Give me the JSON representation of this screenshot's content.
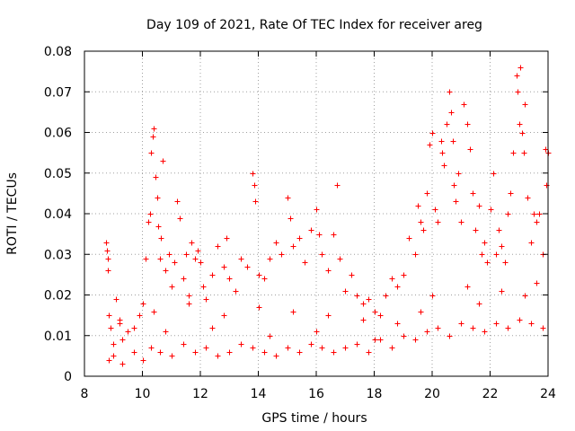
{
  "chart_data": {
    "type": "scatter",
    "title": "Day 109 of 2021, Rate Of TEC Index for receiver areg",
    "xlabel": "GPS time / hours",
    "ylabel": "ROTI / TECUs",
    "xlim": [
      8,
      24
    ],
    "ylim": [
      0,
      0.08
    ],
    "xticks": [
      8,
      10,
      12,
      14,
      16,
      18,
      20,
      22,
      24
    ],
    "yticks": [
      0,
      0.01,
      0.02,
      0.03,
      0.04,
      0.05,
      0.06,
      0.07,
      0.08
    ],
    "xtick_labels": [
      "8",
      "10",
      "12",
      "14",
      "16",
      "18",
      "20",
      "22",
      "24"
    ],
    "ytick_labels": [
      "0",
      "0.01",
      "0.02",
      "0.03",
      "0.04",
      "0.05",
      "0.06",
      "0.07",
      "0.08"
    ],
    "grid": true,
    "marker": "+",
    "color": "#ff0000",
    "series": [
      {
        "name": "ROTI",
        "x": [
          8.75,
          8.78,
          8.8,
          8.82,
          8.85,
          8.9,
          9.0,
          9.1,
          9.2,
          9.3,
          9.5,
          9.7,
          9.9,
          10.0,
          10.1,
          10.2,
          10.25,
          10.3,
          10.35,
          10.4,
          10.45,
          10.5,
          10.55,
          10.6,
          10.65,
          10.7,
          10.8,
          10.9,
          11.0,
          11.1,
          11.2,
          11.3,
          11.4,
          11.5,
          11.6,
          11.7,
          11.8,
          11.9,
          12.0,
          12.1,
          12.2,
          12.4,
          12.6,
          12.8,
          12.9,
          13.0,
          13.2,
          13.4,
          13.6,
          13.8,
          13.85,
          13.9,
          14.0,
          14.2,
          14.4,
          14.6,
          14.8,
          15.0,
          15.1,
          15.2,
          15.4,
          15.6,
          15.8,
          16.0,
          16.1,
          16.2,
          16.4,
          16.6,
          16.7,
          16.8,
          17.0,
          17.2,
          17.4,
          17.6,
          17.8,
          18.0,
          18.2,
          18.4,
          18.6,
          18.8,
          19.0,
          19.2,
          19.4,
          19.5,
          19.6,
          19.7,
          19.8,
          19.9,
          20.0,
          20.1,
          20.2,
          20.3,
          20.35,
          20.4,
          20.5,
          20.6,
          20.65,
          20.7,
          20.75,
          20.8,
          20.9,
          21.0,
          21.1,
          21.2,
          21.3,
          21.4,
          21.5,
          21.6,
          21.7,
          21.8,
          21.9,
          22.0,
          22.1,
          22.2,
          22.3,
          22.4,
          22.5,
          22.6,
          22.7,
          22.8,
          22.9,
          22.95,
          23.0,
          23.05,
          23.1,
          23.15,
          23.2,
          23.3,
          23.4,
          23.5,
          23.6,
          23.7,
          23.8,
          23.9,
          23.95,
          24.0,
          8.85,
          9.0,
          9.3,
          9.7,
          10.0,
          10.3,
          10.6,
          11.0,
          11.4,
          11.8,
          12.2,
          12.6,
          13.0,
          13.4,
          13.8,
          14.2,
          14.6,
          15.0,
          15.4,
          15.8,
          16.2,
          16.6,
          17.0,
          17.4,
          17.8,
          18.2,
          18.6,
          19.0,
          19.4,
          19.8,
          20.2,
          20.6,
          21.0,
          21.4,
          21.8,
          22.2,
          22.6,
          23.0,
          23.4,
          23.8,
          9.2,
          10.4,
          11.6,
          12.8,
          14.0,
          15.2,
          16.4,
          17.6,
          18.8,
          20.0,
          21.2,
          22.4,
          23.6,
          10.8,
          12.4,
          14.4,
          16.0,
          18.0,
          19.6,
          21.6,
          23.2
        ],
        "values": [
          0.033,
          0.031,
          0.029,
          0.026,
          0.015,
          0.012,
          0.008,
          0.019,
          0.013,
          0.009,
          0.011,
          0.012,
          0.015,
          0.018,
          0.029,
          0.038,
          0.04,
          0.055,
          0.059,
          0.061,
          0.049,
          0.044,
          0.037,
          0.029,
          0.034,
          0.053,
          0.026,
          0.03,
          0.022,
          0.028,
          0.043,
          0.039,
          0.024,
          0.03,
          0.02,
          0.033,
          0.029,
          0.031,
          0.028,
          0.022,
          0.019,
          0.025,
          0.032,
          0.027,
          0.034,
          0.024,
          0.021,
          0.029,
          0.027,
          0.05,
          0.047,
          0.043,
          0.025,
          0.024,
          0.029,
          0.033,
          0.03,
          0.044,
          0.039,
          0.032,
          0.034,
          0.028,
          0.036,
          0.041,
          0.035,
          0.03,
          0.026,
          0.035,
          0.047,
          0.029,
          0.021,
          0.025,
          0.02,
          0.018,
          0.019,
          0.016,
          0.015,
          0.02,
          0.024,
          0.022,
          0.025,
          0.034,
          0.03,
          0.042,
          0.038,
          0.036,
          0.045,
          0.057,
          0.06,
          0.041,
          0.038,
          0.058,
          0.055,
          0.052,
          0.062,
          0.07,
          0.065,
          0.058,
          0.047,
          0.043,
          0.05,
          0.038,
          0.067,
          0.062,
          0.056,
          0.045,
          0.036,
          0.042,
          0.03,
          0.033,
          0.028,
          0.041,
          0.05,
          0.03,
          0.036,
          0.032,
          0.028,
          0.04,
          0.045,
          0.055,
          0.074,
          0.07,
          0.062,
          0.076,
          0.06,
          0.055,
          0.067,
          0.044,
          0.033,
          0.04,
          0.038,
          0.04,
          0.03,
          0.056,
          0.047,
          0.055,
          0.004,
          0.005,
          0.003,
          0.006,
          0.004,
          0.007,
          0.006,
          0.005,
          0.008,
          0.006,
          0.007,
          0.005,
          0.006,
          0.008,
          0.007,
          0.006,
          0.005,
          0.007,
          0.006,
          0.008,
          0.007,
          0.006,
          0.007,
          0.008,
          0.006,
          0.009,
          0.007,
          0.01,
          0.009,
          0.011,
          0.012,
          0.01,
          0.013,
          0.012,
          0.011,
          0.013,
          0.012,
          0.014,
          0.013,
          0.012,
          0.014,
          0.016,
          0.018,
          0.015,
          0.017,
          0.016,
          0.015,
          0.014,
          0.013,
          0.02,
          0.022,
          0.021,
          0.023,
          0.011,
          0.012,
          0.01,
          0.011,
          0.009,
          0.016,
          0.018,
          0.02
        ]
      }
    ]
  }
}
